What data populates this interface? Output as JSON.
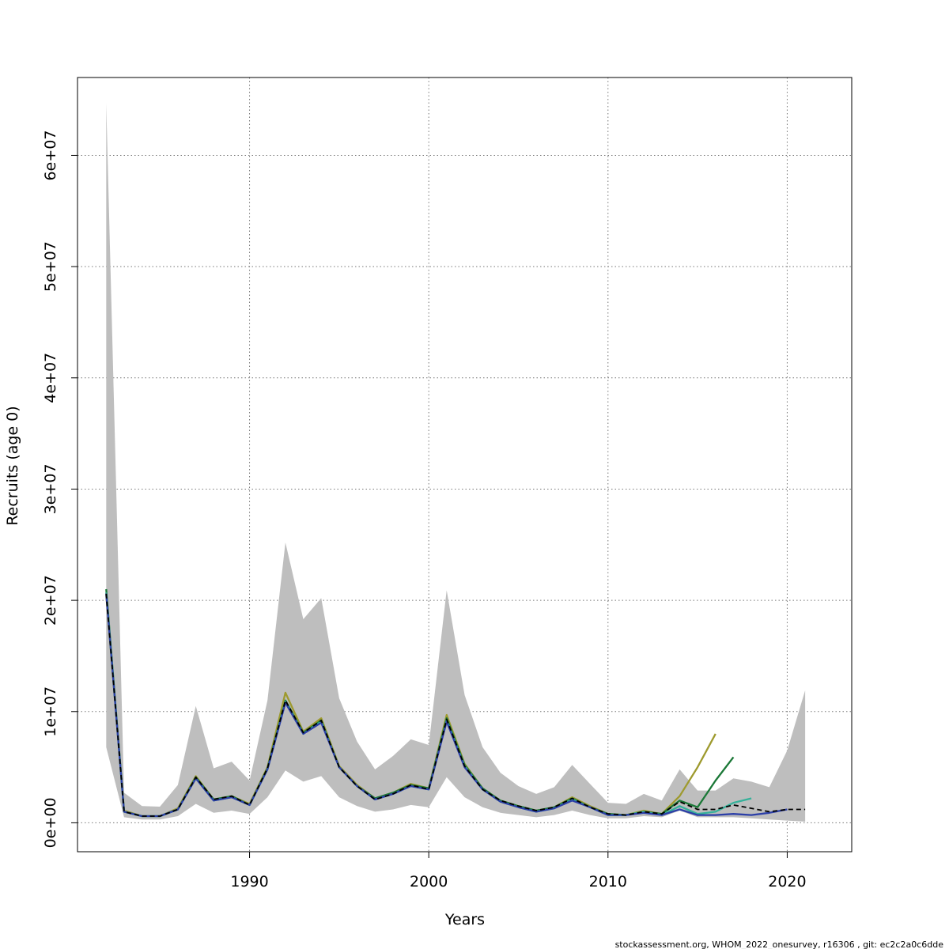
{
  "chart_data": {
    "type": "line",
    "title": "",
    "xlabel": "Years",
    "ylabel": "Recruits (age 0)",
    "xlim": [
      1980.4,
      2023.6
    ],
    "ylim": [
      -2600000,
      67000000
    ],
    "x_ticks": [
      1990,
      2000,
      2010,
      2020
    ],
    "x_tick_labels": [
      "1990",
      "2000",
      "2010",
      "2020"
    ],
    "y_ticks": [
      0,
      10000000,
      20000000,
      30000000,
      40000000,
      50000000,
      60000000
    ],
    "y_tick_labels": [
      "0e+00",
      "1e+07",
      "2e+07",
      "3e+07",
      "4e+07",
      "5e+07",
      "6e+07"
    ],
    "grid": true,
    "legend": "none",
    "confidence_band": {
      "color": "#bebebe",
      "x": [
        1982,
        1983,
        1984,
        1985,
        1986,
        1987,
        1988,
        1989,
        1990,
        1991,
        1992,
        1993,
        1994,
        1995,
        1996,
        1997,
        1998,
        1999,
        2000,
        2001,
        2002,
        2003,
        2004,
        2005,
        2006,
        2007,
        2008,
        2009,
        2010,
        2011,
        2012,
        2013,
        2014,
        2015,
        2016,
        2017,
        2018,
        2019,
        2020,
        2021
      ],
      "upper": [
        64700000,
        2700000,
        1500000,
        1450000,
        3400000,
        10500000,
        4900000,
        5500000,
        3800000,
        11000000,
        25200000,
        18300000,
        20200000,
        11200000,
        7300000,
        4800000,
        6000000,
        7500000,
        7000000,
        20900000,
        11500000,
        6800000,
        4500000,
        3300000,
        2600000,
        3200000,
        5200000,
        3500000,
        1800000,
        1700000,
        2600000,
        2000000,
        4800000,
        2900000,
        2900000,
        4000000,
        3700000,
        3200000,
        6500000,
        11900000
      ],
      "lower": [
        6800000,
        500000,
        300000,
        300000,
        600000,
        1700000,
        900000,
        1100000,
        800000,
        2300000,
        4700000,
        3700000,
        4200000,
        2300000,
        1500000,
        1000000,
        1200000,
        1600000,
        1400000,
        4100000,
        2300000,
        1400000,
        900000,
        700000,
        500000,
        700000,
        1100000,
        700000,
        400000,
        400000,
        600000,
        500000,
        1100000,
        500000,
        500000,
        500000,
        400000,
        300000,
        200000,
        100000
      ]
    },
    "series": [
      {
        "color": "#9e9a2e",
        "x": [
          1982,
          1983,
          1984,
          1985,
          1986,
          1987,
          1988,
          1989,
          1990,
          1991,
          1992,
          1993,
          1994,
          1995,
          1996,
          1997,
          1998,
          1999,
          2000,
          2001,
          2002,
          2003,
          2004,
          2005,
          2006,
          2007,
          2008,
          2009,
          2010,
          2011,
          2012,
          2013,
          2014,
          2015,
          2016
        ],
        "values": [
          20500000,
          1100000,
          600000,
          600000,
          1300000,
          4200000,
          2100000,
          2400000,
          1700000,
          5000000,
          11700000,
          8200000,
          9400000,
          5100000,
          3400000,
          2200000,
          2700000,
          3500000,
          3100000,
          9700000,
          5300000,
          3100000,
          2000000,
          1500000,
          1100000,
          1400000,
          2300000,
          1500000,
          800000,
          700000,
          1100000,
          800000,
          2400000,
          5000000,
          8000000
        ]
      },
      {
        "color": "#1b7837",
        "x": [
          1982,
          1983,
          1984,
          1985,
          1986,
          1987,
          1988,
          1989,
          1990,
          1991,
          1992,
          1993,
          1994,
          1995,
          1996,
          1997,
          1998,
          1999,
          2000,
          2001,
          2002,
          2003,
          2004,
          2005,
          2006,
          2007,
          2008,
          2009,
          2010,
          2011,
          2012,
          2013,
          2014,
          2015,
          2016,
          2017
        ],
        "values": [
          21000000,
          1000000,
          600000,
          600000,
          1200000,
          4100000,
          2100000,
          2400000,
          1600000,
          4900000,
          11000000,
          8100000,
          9200000,
          5000000,
          3300000,
          2200000,
          2700000,
          3400000,
          3100000,
          9400000,
          5200000,
          3100000,
          2000000,
          1500000,
          1100000,
          1400000,
          2200000,
          1400000,
          800000,
          700000,
          1000000,
          800000,
          2000000,
          1400000,
          3800000,
          5900000
        ]
      },
      {
        "color": "#35b19a",
        "x": [
          1982,
          1983,
          1984,
          1985,
          1986,
          1987,
          1988,
          1989,
          1990,
          1991,
          1992,
          1993,
          1994,
          1995,
          1996,
          1997,
          1998,
          1999,
          2000,
          2001,
          2002,
          2003,
          2004,
          2005,
          2006,
          2007,
          2008,
          2009,
          2010,
          2011,
          2012,
          2013,
          2014,
          2015,
          2016,
          2017,
          2018
        ],
        "values": [
          20700000,
          1000000,
          600000,
          600000,
          1200000,
          4000000,
          2000000,
          2300000,
          1600000,
          4800000,
          10900000,
          8000000,
          9100000,
          5000000,
          3300000,
          2100000,
          2600000,
          3300000,
          3000000,
          9200000,
          5100000,
          3000000,
          1900000,
          1400000,
          1000000,
          1300000,
          2100000,
          1400000,
          700000,
          700000,
          1000000,
          700000,
          1500000,
          800000,
          1000000,
          1800000,
          2200000
        ]
      },
      {
        "color": "#2c3fa8",
        "x": [
          1982,
          1983,
          1984,
          1985,
          1986,
          1987,
          1988,
          1989,
          1990,
          1991,
          1992,
          1993,
          1994,
          1995,
          1996,
          1997,
          1998,
          1999,
          2000,
          2001,
          2002,
          2003,
          2004,
          2005,
          2006,
          2007,
          2008,
          2009,
          2010,
          2011,
          2012,
          2013,
          2014,
          2015,
          2016,
          2017,
          2018,
          2019,
          2020
        ],
        "values": [
          20600000,
          1000000,
          600000,
          600000,
          1200000,
          4000000,
          2000000,
          2300000,
          1600000,
          4800000,
          10800000,
          8000000,
          9000000,
          5000000,
          3300000,
          2100000,
          2600000,
          3300000,
          3000000,
          9100000,
          5000000,
          3000000,
          1900000,
          1400000,
          1000000,
          1300000,
          2000000,
          1400000,
          700000,
          700000,
          900000,
          700000,
          1200000,
          700000,
          700000,
          800000,
          700000,
          900000,
          1200000
        ]
      },
      {
        "color": "#000000",
        "dashed": true,
        "x": [
          1982,
          1983,
          1984,
          1985,
          1986,
          1987,
          1988,
          1989,
          1990,
          1991,
          1992,
          1993,
          1994,
          1995,
          1996,
          1997,
          1998,
          1999,
          2000,
          2001,
          2002,
          2003,
          2004,
          2005,
          2006,
          2007,
          2008,
          2009,
          2010,
          2011,
          2012,
          2013,
          2014,
          2015,
          2016,
          2017,
          2018,
          2019,
          2020,
          2021
        ],
        "values": [
          20600000,
          1000000,
          600000,
          600000,
          1200000,
          4100000,
          2100000,
          2400000,
          1600000,
          4900000,
          11000000,
          8100000,
          9200000,
          5000000,
          3300000,
          2100000,
          2600000,
          3400000,
          3000000,
          9300000,
          5100000,
          3000000,
          2000000,
          1500000,
          1100000,
          1400000,
          2200000,
          1400000,
          800000,
          700000,
          1000000,
          800000,
          1900000,
          1200000,
          1200000,
          1600000,
          1300000,
          1000000,
          1200000,
          1200000
        ]
      }
    ]
  },
  "credit": "stockassessment.org, WHOM_2022_onesurvey, r16306 , git: ec2c2a0c6dde"
}
